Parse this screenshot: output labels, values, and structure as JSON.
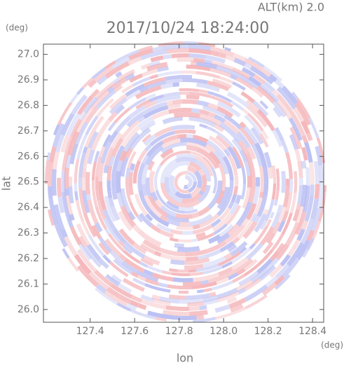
{
  "chart_data": {
    "type": "ppi",
    "title": "2017/10/24 18:24:00",
    "annotation": "ALT(km) 2.0",
    "x_label": "lon",
    "y_label": "lat",
    "x_unit": "(deg)",
    "y_unit": "(deg)",
    "xlim": [
      127.19,
      128.45
    ],
    "ylim": [
      25.95,
      27.04
    ],
    "xticks": [
      127.4,
      127.6,
      127.8,
      {
        "value": 128.0,
        "label": "128.0"
      },
      128.2,
      128.4
    ],
    "yticks": [
      {
        "value": 26.0,
        "label": "26.0"
      },
      26.1,
      26.2,
      26.3,
      26.4,
      26.5,
      26.6,
      26.7,
      26.8,
      26.9,
      {
        "value": 27.0,
        "label": "27.0"
      }
    ],
    "colors": [
      "#f4b4b8",
      "#b8bdf2"
    ]
  }
}
